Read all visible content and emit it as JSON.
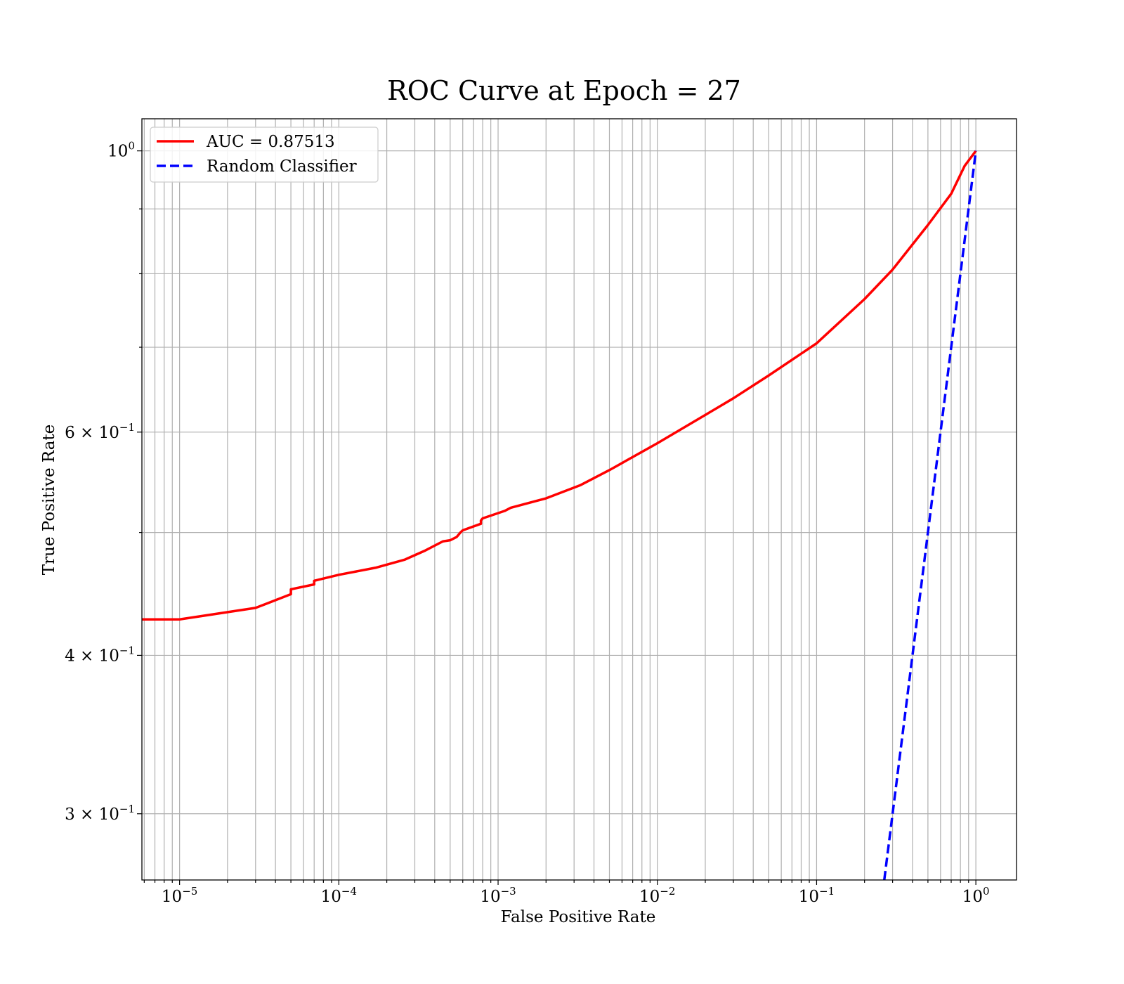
{
  "chart_data": {
    "type": "line",
    "title": "ROC Curve at Epoch = 27",
    "xlabel": "False Positive Rate",
    "ylabel": "True Positive Rate",
    "x_scale": "log",
    "y_scale": "log",
    "xlim": [
      5.8e-06,
      1.8
    ],
    "ylim": [
      0.266,
      1.06
    ],
    "grid": true,
    "legend_position": "top-left",
    "x_ticks": [
      {
        "value": 1e-05,
        "base": "10",
        "exp": "−5"
      },
      {
        "value": 0.0001,
        "base": "10",
        "exp": "−4"
      },
      {
        "value": 0.001,
        "base": "10",
        "exp": "−3"
      },
      {
        "value": 0.01,
        "base": "10",
        "exp": "−2"
      },
      {
        "value": 0.1,
        "base": "10",
        "exp": "−1"
      },
      {
        "value": 1,
        "base": "10",
        "exp": "0"
      }
    ],
    "y_ticks": [
      {
        "value": 1.0,
        "base": "10",
        "exp": "0"
      },
      {
        "value": 0.6,
        "base": "6 × 10",
        "exp": "−1"
      },
      {
        "value": 0.4,
        "base": "4 × 10",
        "exp": "−1"
      },
      {
        "value": 0.3,
        "base": "3 × 10",
        "exp": "−1"
      }
    ],
    "series": [
      {
        "name": "AUC = 0.87513",
        "color": "#ff0000",
        "style": "solid",
        "x": [
          5.8e-06,
          1e-05,
          3e-05,
          5e-05,
          5e-05,
          7e-05,
          7e-05,
          0.0001,
          0.00017,
          0.00026,
          0.00035,
          0.00045,
          0.0005,
          0.00055,
          0.00058,
          0.0006,
          0.00078,
          0.00078,
          0.0008,
          0.0011,
          0.0012,
          0.002,
          0.0033,
          0.005,
          0.01,
          0.02,
          0.03,
          0.05,
          0.1,
          0.2,
          0.3,
          0.5,
          0.7,
          0.85,
          1.0
        ],
        "y": [
          0.427,
          0.427,
          0.436,
          0.447,
          0.451,
          0.455,
          0.458,
          0.463,
          0.469,
          0.476,
          0.484,
          0.492,
          0.493,
          0.496,
          0.5,
          0.502,
          0.508,
          0.511,
          0.513,
          0.52,
          0.523,
          0.532,
          0.545,
          0.56,
          0.588,
          0.619,
          0.638,
          0.665,
          0.705,
          0.764,
          0.806,
          0.874,
          0.925,
          0.973,
          1.0
        ]
      },
      {
        "name": "Random Classifier",
        "color": "#0000ff",
        "style": "dashed",
        "x": [
          0.266,
          1.0
        ],
        "y": [
          0.266,
          1.0
        ]
      }
    ]
  }
}
